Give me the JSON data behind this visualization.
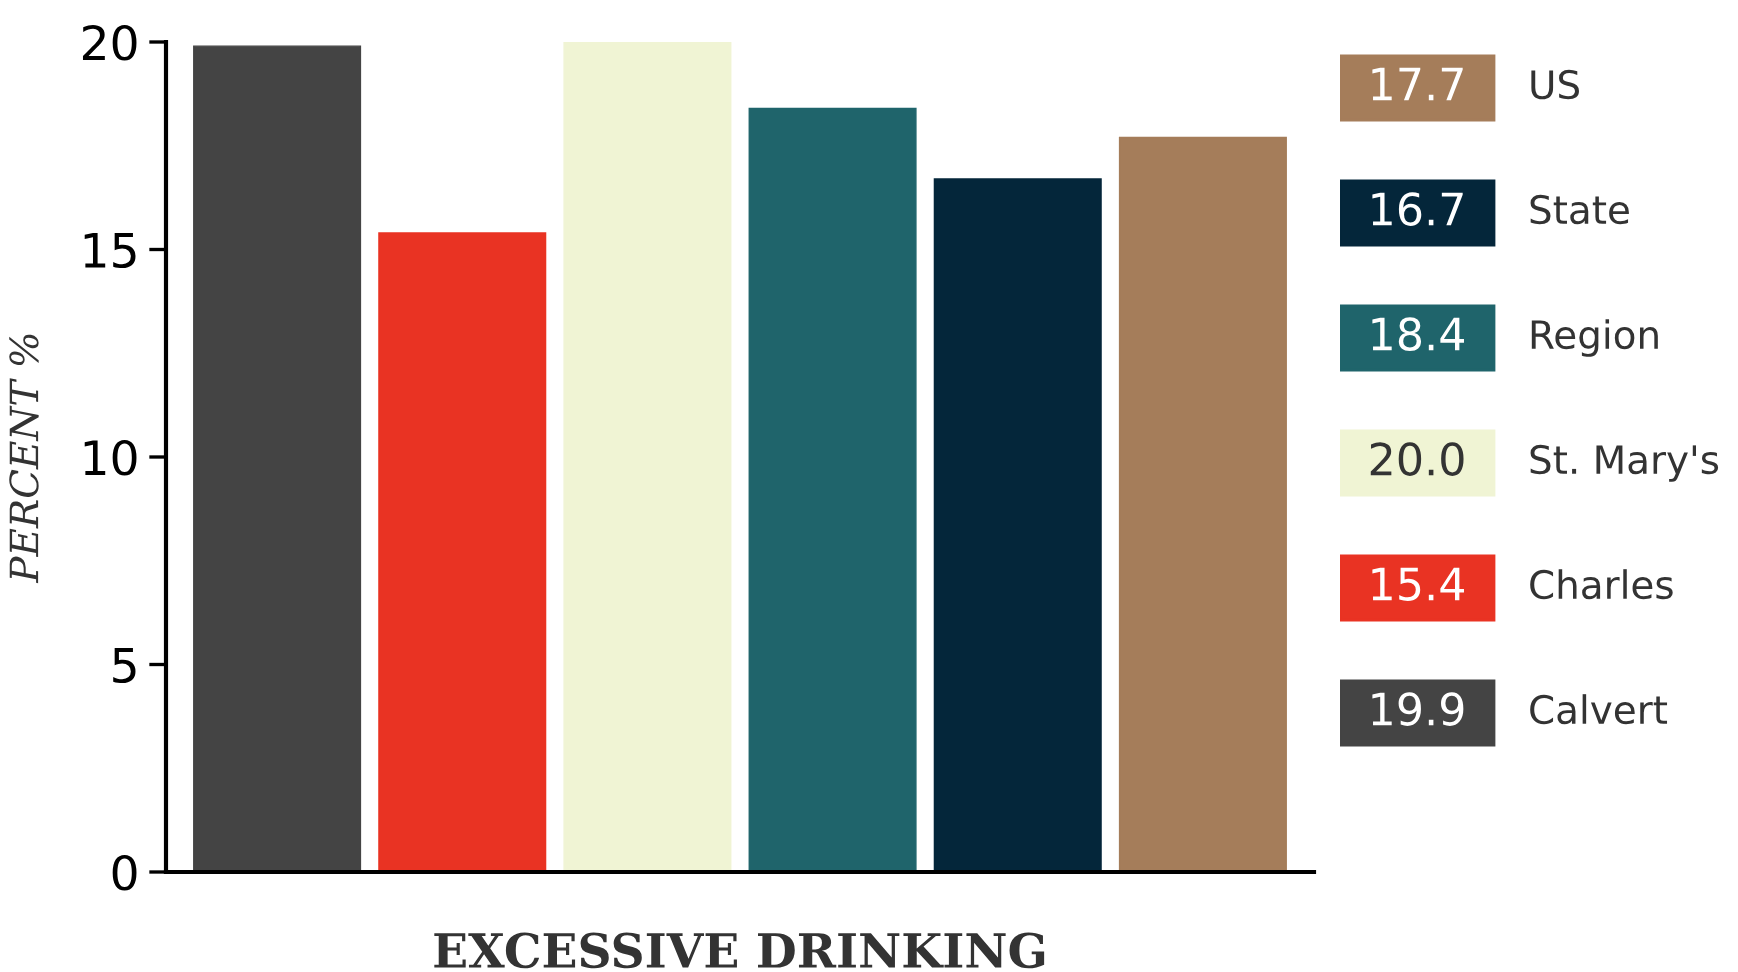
{
  "chart_data": {
    "type": "bar",
    "xlabel": "EXCESSIVE DRINKING",
    "ylabel": "PERCENT %",
    "categories": [
      null,
      null,
      null,
      null,
      null,
      null
    ],
    "series": [
      {
        "name": "Calvert",
        "color": "#444444",
        "values": [
          19.9,
          null,
          null,
          null,
          null,
          null
        ]
      },
      {
        "name": "Charles",
        "color": "#e93323",
        "values": [
          null,
          15.4,
          null,
          null,
          null,
          null
        ]
      },
      {
        "name": "St. Mary's",
        "color": "#f0f4d4",
        "values": [
          null,
          null,
          20.0,
          null,
          null,
          null
        ]
      },
      {
        "name": "Region",
        "color": "#1f646b",
        "values": [
          null,
          null,
          null,
          18.4,
          null,
          null
        ]
      },
      {
        "name": "State",
        "color": "#04263a",
        "values": [
          null,
          null,
          null,
          null,
          16.7,
          null
        ]
      },
      {
        "name": "US",
        "color": "#a57d5a",
        "values": [
          null,
          null,
          null,
          null,
          null,
          17.7
        ]
      }
    ],
    "ylim": [
      0,
      20
    ],
    "yticks": [
      0,
      5,
      10,
      15,
      20
    ],
    "grid": false,
    "legend": "right",
    "annotations": [
      "19.9",
      "15.4",
      "20.0",
      "18.4",
      "16.7",
      "17.7"
    ]
  }
}
